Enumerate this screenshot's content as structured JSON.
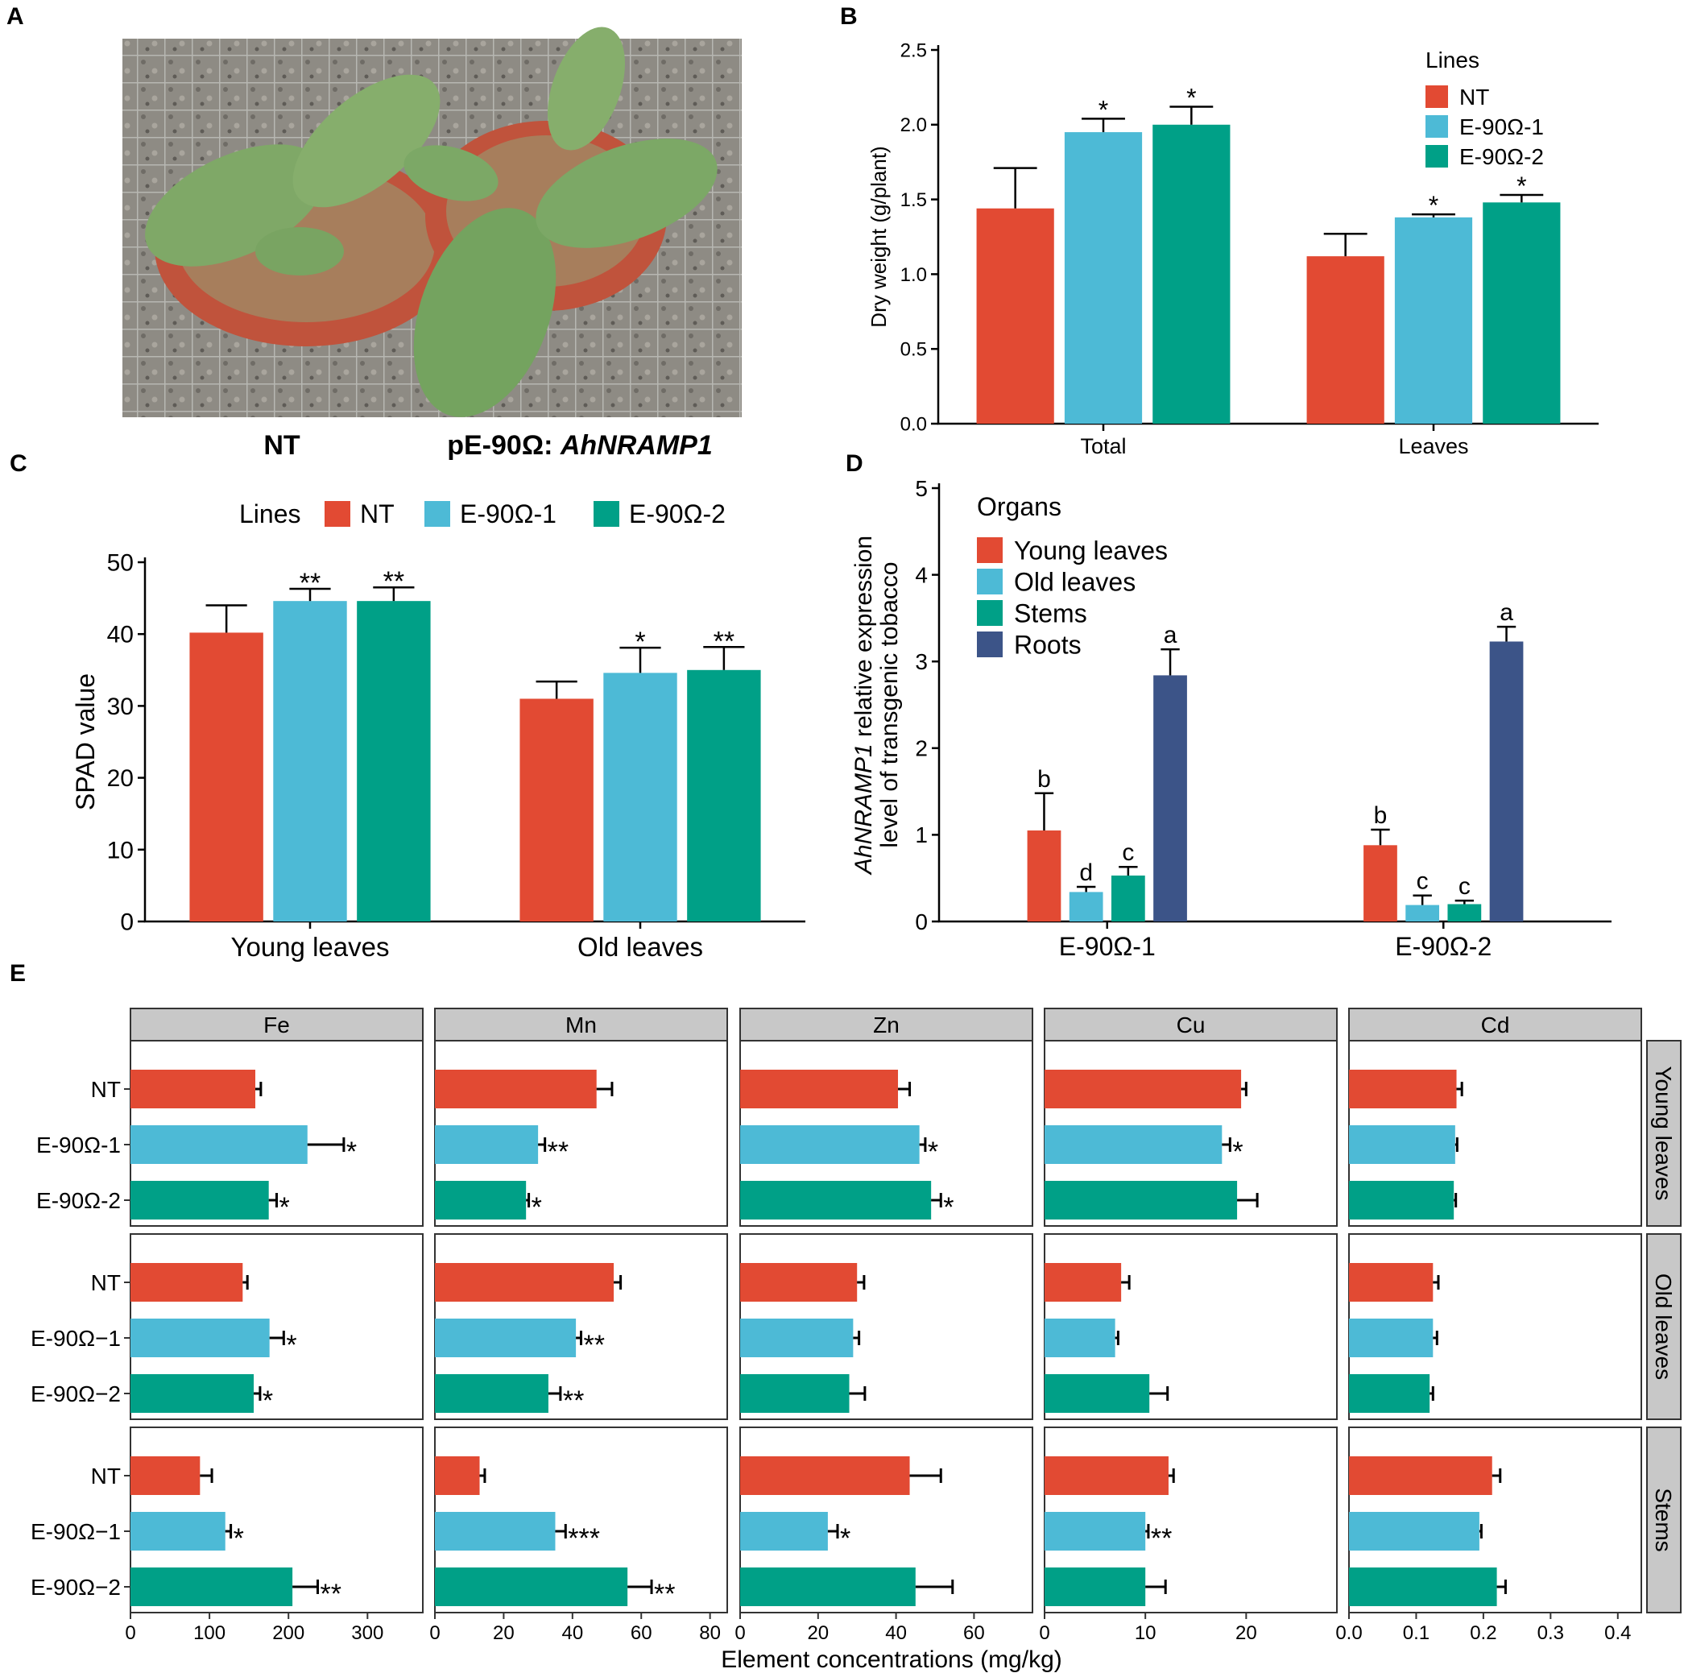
{
  "colors": {
    "red": "#E24A33",
    "cyan": "#4DBAD6",
    "green": "#00A087",
    "navy": "#3C5488",
    "strip": "#c8c8c8"
  },
  "panel_labels": {
    "a": "A",
    "b": "B",
    "c": "C",
    "d": "D",
    "e": "E"
  },
  "panel_a": {
    "caption_nt": "NT",
    "caption_trans_prefix": "pE-90Ω: ",
    "caption_trans_gene": "AhNRAMP1"
  },
  "chart_data": [
    {
      "id": "B",
      "type": "bar",
      "title": "",
      "ylabel": "Dry weight (g/plant)",
      "xlabel": "",
      "ylim": [
        0,
        2.5
      ],
      "yticks": [
        0,
        0.5,
        1,
        1.5,
        2,
        2.5
      ],
      "ytick_labels": [
        "0.0",
        "0.5",
        "1.0",
        "1.5",
        "2.0",
        "2.5"
      ],
      "categories": [
        "Total",
        "Leaves"
      ],
      "legend_title": "Lines",
      "legend_position": "top-right",
      "series": [
        {
          "name": "NT",
          "color": "#E24A33",
          "values": [
            1.44,
            1.12
          ],
          "errors": [
            0.27,
            0.15
          ],
          "sig": [
            "",
            ""
          ]
        },
        {
          "name": "E-90Ω-1",
          "color": "#4DBAD6",
          "values": [
            1.95,
            1.38
          ],
          "errors": [
            0.09,
            0.02
          ],
          "sig": [
            "*",
            "*"
          ]
        },
        {
          "name": "E-90Ω-2",
          "color": "#00A087",
          "values": [
            2.0,
            1.48
          ],
          "errors": [
            0.12,
            0.05
          ],
          "sig": [
            "*",
            "*"
          ]
        }
      ]
    },
    {
      "id": "C",
      "type": "bar",
      "title": "",
      "ylabel": "SPAD value",
      "xlabel": "",
      "ylim": [
        0,
        50
      ],
      "yticks": [
        0,
        10,
        20,
        30,
        40,
        50
      ],
      "ytick_labels": [
        "0",
        "10",
        "20",
        "30",
        "40",
        "50"
      ],
      "categories": [
        "Young leaves",
        "Old leaves"
      ],
      "legend_title": "Lines",
      "legend_position": "top",
      "series": [
        {
          "name": "NT",
          "color": "#E24A33",
          "values": [
            40.2,
            31.0
          ],
          "errors": [
            3.8,
            2.4
          ],
          "sig": [
            "",
            ""
          ]
        },
        {
          "name": "E-90Ω-1",
          "color": "#4DBAD6",
          "values": [
            44.6,
            34.6
          ],
          "errors": [
            1.7,
            3.5
          ],
          "sig": [
            "**",
            "*"
          ]
        },
        {
          "name": "E-90Ω-2",
          "color": "#00A087",
          "values": [
            44.6,
            35.0
          ],
          "errors": [
            1.9,
            3.2
          ],
          "sig": [
            "**",
            "**"
          ]
        }
      ]
    },
    {
      "id": "D",
      "type": "bar",
      "title": "",
      "ylabel_italic": "AhNRAMP1",
      "ylabel_rest": " relative expression",
      "ylabel_line2": "level of transgenic tobacco",
      "xlabel": "",
      "ylim": [
        0,
        5
      ],
      "yticks": [
        0,
        1,
        2,
        3,
        4,
        5
      ],
      "ytick_labels": [
        "0",
        "1",
        "2",
        "3",
        "4",
        "5"
      ],
      "categories": [
        "E-90Ω-1",
        "E-90Ω-2"
      ],
      "legend_title": "Organs",
      "legend_position": "top-left",
      "series": [
        {
          "name": "Young leaves",
          "color": "#E24A33",
          "values": [
            1.05,
            0.88
          ],
          "errors": [
            0.43,
            0.18
          ],
          "sig": [
            "b",
            "b"
          ]
        },
        {
          "name": "Old leaves",
          "color": "#4DBAD6",
          "values": [
            0.34,
            0.19
          ],
          "errors": [
            0.06,
            0.11
          ],
          "sig": [
            "d",
            "c"
          ]
        },
        {
          "name": "Stems",
          "color": "#00A087",
          "values": [
            0.53,
            0.2
          ],
          "errors": [
            0.1,
            0.04
          ],
          "sig": [
            "c",
            "c"
          ]
        },
        {
          "name": "Roots",
          "color": "#3C5488",
          "values": [
            2.84,
            3.23
          ],
          "errors": [
            0.3,
            0.17
          ],
          "sig": [
            "a",
            "a"
          ]
        }
      ]
    },
    {
      "id": "E",
      "type": "bar",
      "orientation": "horizontal",
      "title": "",
      "xlabel": "Element concentrations (mg/kg)",
      "ylabel": "",
      "elements": [
        "Fe",
        "Mn",
        "Zn",
        "Cu",
        "Cd"
      ],
      "organs": [
        "Young leaves",
        "Old leaves",
        "Stems"
      ],
      "row_labels": [
        [
          "NT",
          "E-90Ω-1",
          "E-90Ω-2"
        ],
        [
          "NT",
          "E-90Ω−1",
          "E-90Ω−2"
        ],
        [
          "NT",
          "E-90Ω−1",
          "E-90Ω−2"
        ]
      ],
      "xlims": [
        [
          0,
          370
        ],
        [
          0,
          85
        ],
        [
          0,
          75
        ],
        [
          0,
          29
        ],
        [
          0,
          0.435
        ]
      ],
      "xticks": [
        [
          0,
          100,
          200,
          300
        ],
        [
          0,
          20,
          40,
          60,
          80
        ],
        [
          0,
          20,
          40,
          60
        ],
        [
          0,
          10,
          20
        ],
        [
          0,
          0.1,
          0.2,
          0.3,
          0.4
        ]
      ],
      "xtick_labels": [
        [
          "0",
          "100",
          "200",
          "300"
        ],
        [
          "0",
          "20",
          "40",
          "60",
          "80"
        ],
        [
          "0",
          "20",
          "40",
          "60"
        ],
        [
          "0",
          "10",
          "20"
        ],
        [
          "0.0",
          "0.1",
          "0.2",
          "0.3",
          "0.4"
        ]
      ],
      "values": {
        "Fe": [
          [
            158,
            224,
            175
          ],
          [
            142,
            176,
            156
          ],
          [
            88,
            120,
            205
          ]
        ],
        "Mn": [
          [
            47,
            30,
            26.5
          ],
          [
            52,
            41,
            33
          ],
          [
            13,
            35,
            56
          ]
        ],
        "Zn": [
          [
            40.5,
            46,
            49
          ],
          [
            30,
            29,
            28
          ],
          [
            43.5,
            22.5,
            45
          ]
        ],
        "Cu": [
          [
            19.5,
            17.6,
            19.1
          ],
          [
            7.6,
            7,
            10.4
          ],
          [
            12.3,
            10,
            10
          ]
        ],
        "Cd": [
          [
            0.16,
            0.158,
            0.156
          ],
          [
            0.125,
            0.125,
            0.12
          ],
          [
            0.213,
            0.194,
            0.22
          ]
        ]
      },
      "errors": {
        "Fe": [
          [
            7,
            46,
            10
          ],
          [
            6,
            18,
            8
          ],
          [
            15,
            7,
            32
          ]
        ],
        "Mn": [
          [
            4.5,
            2,
            0.8
          ],
          [
            2,
            1.5,
            3.5
          ],
          [
            1.5,
            3,
            7
          ]
        ],
        "Zn": [
          [
            3,
            1.5,
            2.5
          ],
          [
            1.8,
            1.5,
            4
          ],
          [
            8,
            2.5,
            9.5
          ]
        ],
        "Cu": [
          [
            0.5,
            0.8,
            2
          ],
          [
            0.8,
            0.3,
            1.8
          ],
          [
            0.5,
            0.3,
            2
          ]
        ],
        "Cd": [
          [
            0.008,
            0.003,
            0.003
          ],
          [
            0.008,
            0.006,
            0.005
          ],
          [
            0.012,
            0.003,
            0.013
          ]
        ]
      },
      "sig": {
        "Fe": [
          [
            "",
            "*",
            "*"
          ],
          [
            "",
            "*",
            "*"
          ],
          [
            "",
            "*",
            "**"
          ]
        ],
        "Mn": [
          [
            "",
            "**",
            "*"
          ],
          [
            "",
            "**",
            "**"
          ],
          [
            "",
            "***",
            "**"
          ]
        ],
        "Zn": [
          [
            "",
            "*",
            "*"
          ],
          [
            "",
            "",
            ""
          ],
          [
            "",
            "*",
            ""
          ]
        ],
        "Cu": [
          [
            "",
            "*",
            ""
          ],
          [
            "",
            "",
            ""
          ],
          [
            "",
            "**",
            ""
          ]
        ],
        "Cd": [
          [
            "",
            "",
            ""
          ],
          [
            "",
            "",
            ""
          ],
          [
            "",
            "",
            ""
          ]
        ]
      }
    }
  ]
}
